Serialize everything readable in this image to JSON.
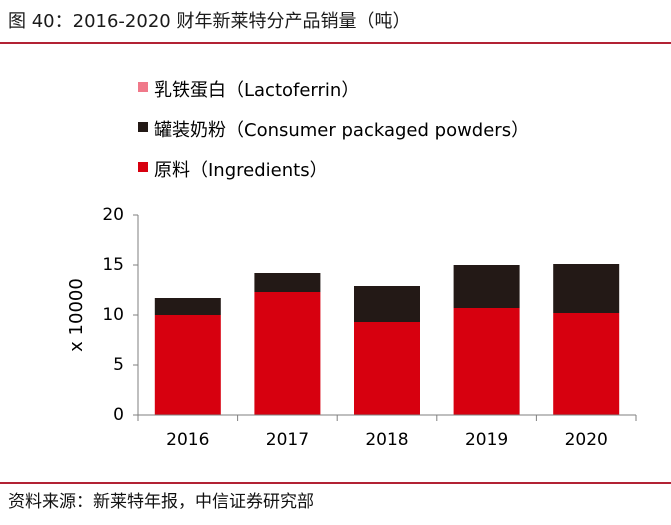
{
  "figure_title": "图 40：2016-2020 财年新莱特分产品销量（吨）",
  "source_note": "资料来源：新莱特年报，中信证券研究部",
  "chart_data": {
    "type": "bar",
    "stacked": true,
    "categories": [
      "2016",
      "2017",
      "2018",
      "2019",
      "2020"
    ],
    "series": [
      {
        "name": "原料（Ingredients）",
        "values": [
          10.0,
          12.3,
          9.3,
          10.7,
          10.2
        ],
        "color": "#d7000f"
      },
      {
        "name": "罐装奶粉（Consumer packaged powders）",
        "values": [
          1.7,
          1.9,
          3.6,
          4.3,
          4.9
        ],
        "color": "#231916"
      },
      {
        "name": "乳铁蛋白（Lactoferrin）",
        "values": [
          0.0,
          0.0,
          0.0,
          0.0,
          0.0
        ],
        "color": "#f0798a"
      }
    ],
    "ylabel": "x 10000",
    "ylim": [
      0,
      20
    ],
    "yticks": [
      "0",
      "5",
      "10",
      "15",
      "20"
    ],
    "grid": false,
    "legend_position": "top-left",
    "legend_order": [
      2,
      1,
      0
    ]
  }
}
